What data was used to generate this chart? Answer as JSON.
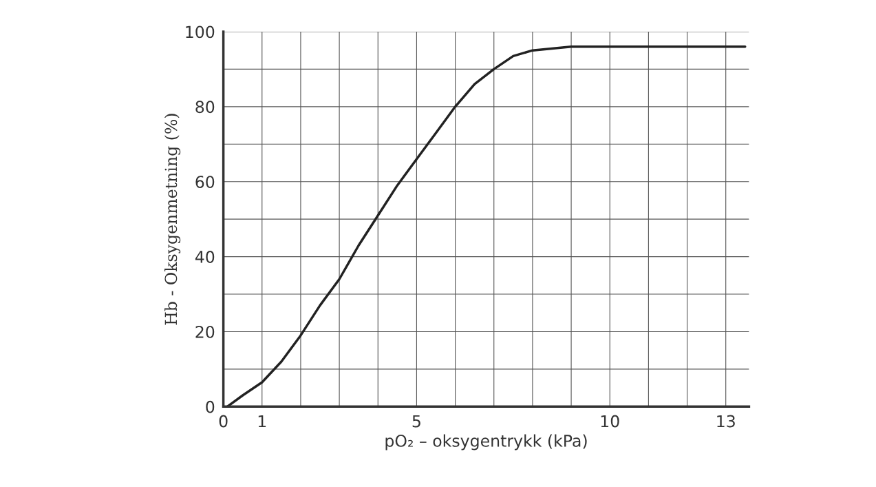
{
  "chart_data": {
    "type": "line",
    "xlabel": "pO₂ – oksygentrykk (kPa)",
    "ylabel": "Hb - Oksygenmetning (%)",
    "x": [
      0.1,
      0.5,
      1,
      1.5,
      2,
      2.5,
      3,
      3.5,
      4,
      4.5,
      5,
      5.5,
      6,
      6.5,
      7,
      7.5,
      8,
      8.5,
      9,
      10,
      11,
      12,
      13,
      13.5
    ],
    "series": [
      {
        "color": "#222222",
        "values": [
          0,
          3,
          6.5,
          12,
          19,
          27,
          34,
          43,
          51,
          59,
          66,
          73,
          80,
          86,
          90,
          93.5,
          95,
          95.5,
          96,
          96,
          96,
          96,
          96,
          96
        ]
      }
    ],
    "xlim": [
      0,
      13.6
    ],
    "ylim": [
      0,
      100
    ],
    "xticks": [
      0,
      1,
      {
        "value": 2,
        "label": null
      },
      {
        "value": 3,
        "label": null
      },
      {
        "value": 4,
        "label": null
      },
      5,
      {
        "value": 6,
        "label": null
      },
      {
        "value": 7,
        "label": null
      },
      {
        "value": 8,
        "label": null
      },
      {
        "value": 9,
        "label": null
      },
      10,
      {
        "value": 11,
        "label": null
      },
      {
        "value": 12,
        "label": null
      },
      13
    ],
    "yticks": [
      0,
      {
        "value": 10,
        "label": null
      },
      20,
      {
        "value": 30,
        "label": null
      },
      40,
      {
        "value": 50,
        "label": null
      },
      60,
      {
        "value": 70,
        "label": null
      },
      80,
      {
        "value": 90,
        "label": null
      },
      100
    ],
    "grid": true,
    "marker": "none",
    "line_style": "solid"
  }
}
